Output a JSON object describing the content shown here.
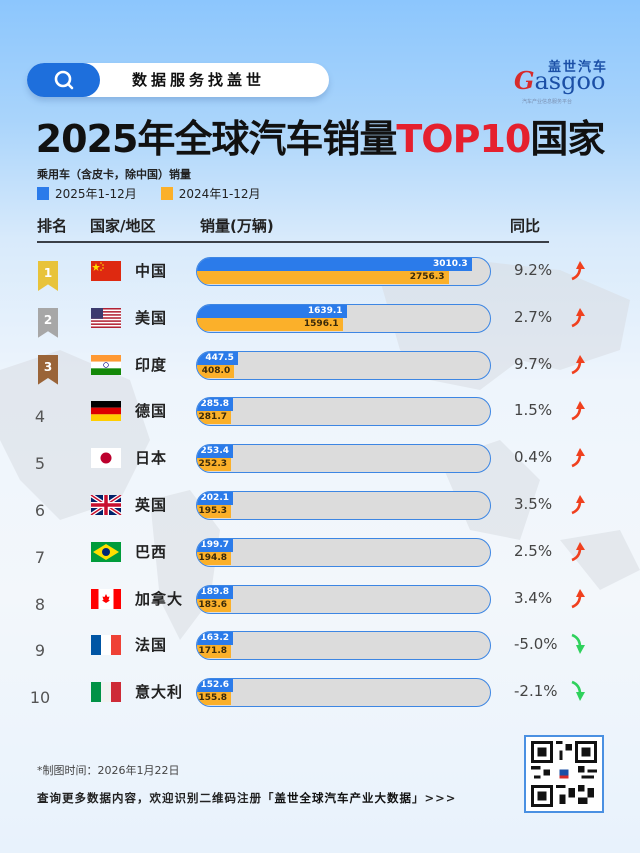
{
  "header": {
    "search_label": "数据服务找盖世",
    "brand_cn": "盖世汽车",
    "brand_en_prefix": "G",
    "brand_en_rest": "asgoo",
    "brand_tagline": "汽车产业信息服务平台"
  },
  "title": {
    "main": "2025年全球汽车销量",
    "highlight": "TOP10",
    "suffix": "国家"
  },
  "subtitle": "乘用车（含皮卡，除中国）销量",
  "legend": [
    {
      "label": "2025年1-12月",
      "color": "#2b7bea"
    },
    {
      "label": "2024年1-12月",
      "color": "#fbb02a"
    }
  ],
  "columns": {
    "rank": "排名",
    "country": "国家/地区",
    "sales": "销量(万辆)",
    "yoy": "同比"
  },
  "rows": [
    {
      "rank": "1",
      "country": "中国",
      "v2025": "3010.3",
      "v2024": "2756.3",
      "yoy": "9.2%",
      "trend": "up"
    },
    {
      "rank": "2",
      "country": "美国",
      "v2025": "1639.1",
      "v2024": "1596.1",
      "yoy": "2.7%",
      "trend": "up"
    },
    {
      "rank": "3",
      "country": "印度",
      "v2025": "447.5",
      "v2024": "408.0",
      "yoy": "9.7%",
      "trend": "up"
    },
    {
      "rank": "4",
      "country": "德国",
      "v2025": "285.8",
      "v2024": "281.7",
      "yoy": "1.5%",
      "trend": "up"
    },
    {
      "rank": "5",
      "country": "日本",
      "v2025": "253.4",
      "v2024": "252.3",
      "yoy": "0.4%",
      "trend": "up"
    },
    {
      "rank": "6",
      "country": "英国",
      "v2025": "202.1",
      "v2024": "195.3",
      "yoy": "3.5%",
      "trend": "up"
    },
    {
      "rank": "7",
      "country": "巴西",
      "v2025": "199.7",
      "v2024": "194.8",
      "yoy": "2.5%",
      "trend": "up"
    },
    {
      "rank": "8",
      "country": "加拿大",
      "v2025": "189.8",
      "v2024": "183.6",
      "yoy": "3.4%",
      "trend": "up"
    },
    {
      "rank": "9",
      "country": "法国",
      "v2025": "163.2",
      "v2024": "171.8",
      "yoy": "-5.0%",
      "trend": "down"
    },
    {
      "rank": "10",
      "country": "意大利",
      "v2025": "152.6",
      "v2024": "155.8",
      "yoy": "-2.1%",
      "trend": "down"
    }
  ],
  "colors": {
    "bar_2025": "#2b7bea",
    "bar_2024": "#fbb02a",
    "bar_track": "#dcdcdc",
    "up_arrow": "#f0401e",
    "down_arrow": "#2fd15c",
    "title_highlight": "#e5202e",
    "gold": "#e8c33a",
    "silver": "#a7a7a7",
    "bronze": "#9a6438"
  },
  "footer": {
    "date": "*制图时间：2026年1月22日",
    "cta_prefix": "查询更多数据内容，欢迎识别二维码注册「",
    "cta_strong": "盖世全球汽车产业大数据",
    "cta_suffix": "」>>>"
  },
  "chart_data": {
    "type": "bar",
    "orientation": "horizontal",
    "title": "2025年全球汽车销量TOP10国家",
    "subtitle": "乘用车（含皮卡，除中国）销量",
    "xlabel": "销量(万辆)",
    "ylabel": "国家/地区",
    "categories": [
      "中国",
      "美国",
      "印度",
      "德国",
      "日本",
      "英国",
      "巴西",
      "加拿大",
      "法国",
      "意大利"
    ],
    "series": [
      {
        "name": "2025年1-12月",
        "color": "#2b7bea",
        "values": [
          3010.3,
          1639.1,
          447.5,
          285.8,
          253.4,
          202.1,
          199.7,
          189.8,
          163.2,
          152.6
        ]
      },
      {
        "name": "2024年1-12月",
        "color": "#fbb02a",
        "values": [
          2756.3,
          1596.1,
          408.0,
          281.7,
          252.3,
          195.3,
          194.8,
          183.6,
          171.8,
          155.8
        ]
      }
    ],
    "yoy_percent": [
      9.2,
      2.7,
      9.7,
      1.5,
      0.4,
      3.5,
      2.5,
      3.4,
      -5.0,
      -2.1
    ],
    "legend_position": "top-left",
    "grid": false
  }
}
